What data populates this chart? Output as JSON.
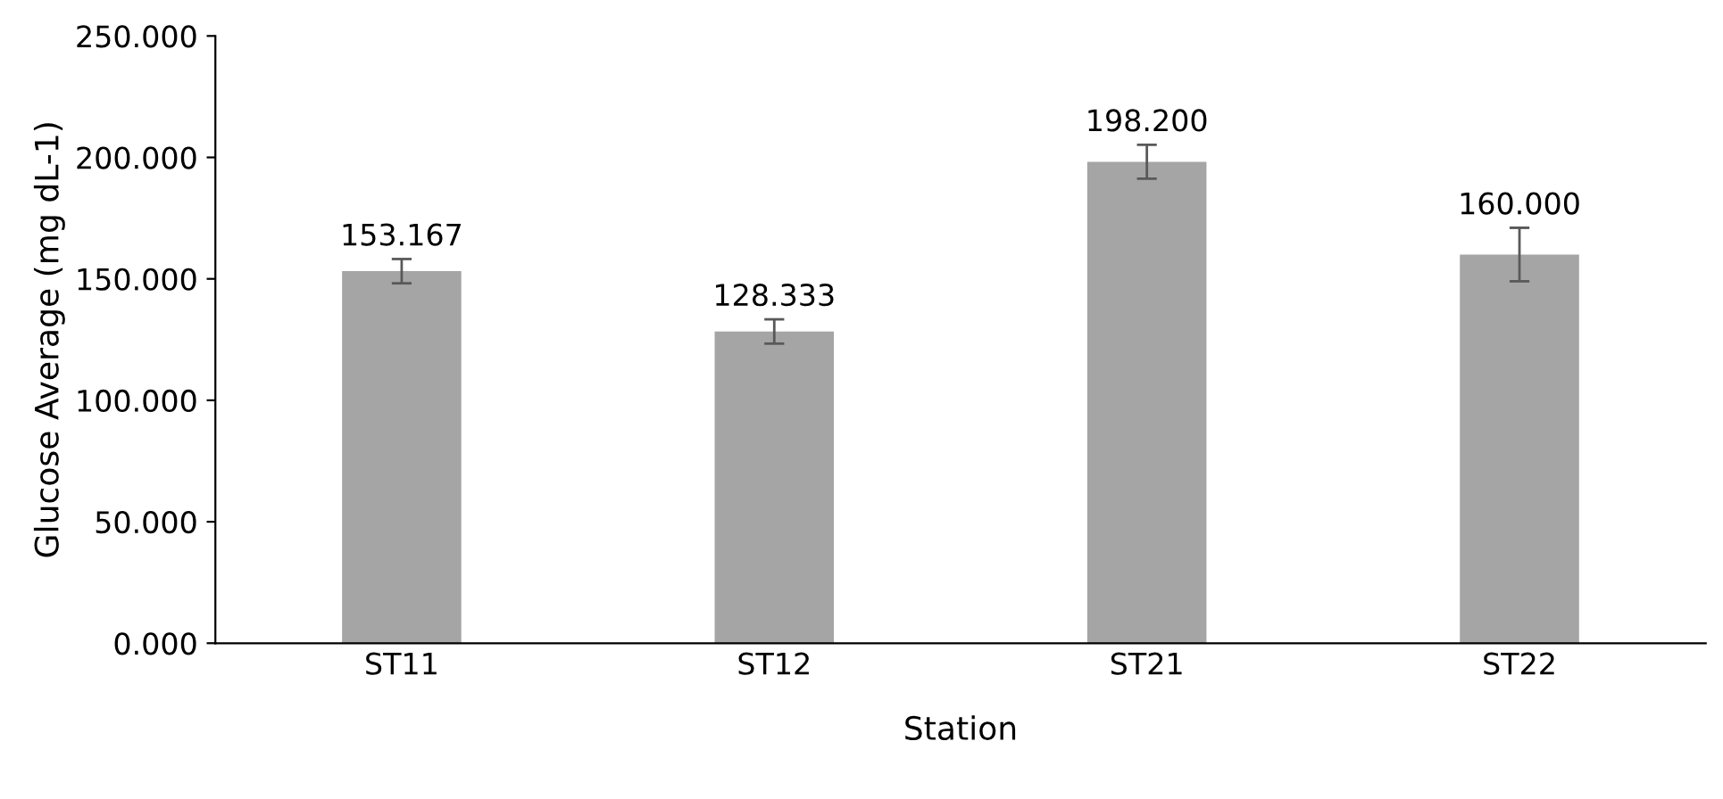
{
  "chart_data": {
    "type": "bar",
    "xlabel": "Station",
    "ylabel": "Glucose Average (mg dL-1)",
    "categories": [
      "ST11",
      "ST12",
      "ST21",
      "ST22"
    ],
    "values": [
      153.167,
      128.333,
      198.2,
      160.0
    ],
    "value_labels": [
      "153.167",
      "128.333",
      "198.200",
      "160.000"
    ],
    "errors": [
      5,
      5,
      7,
      11
    ],
    "color": "#a5a5a5",
    "ylim": [
      0,
      250
    ],
    "yticks": [
      {
        "value": 0,
        "label": "0.000"
      },
      {
        "value": 50,
        "label": "50.000"
      },
      {
        "value": 100,
        "label": "100.000"
      },
      {
        "value": 150,
        "label": "150.000"
      },
      {
        "value": 200,
        "label": "200.000"
      },
      {
        "value": 250,
        "label": "250.000"
      }
    ],
    "grid": false,
    "legend": false
  }
}
